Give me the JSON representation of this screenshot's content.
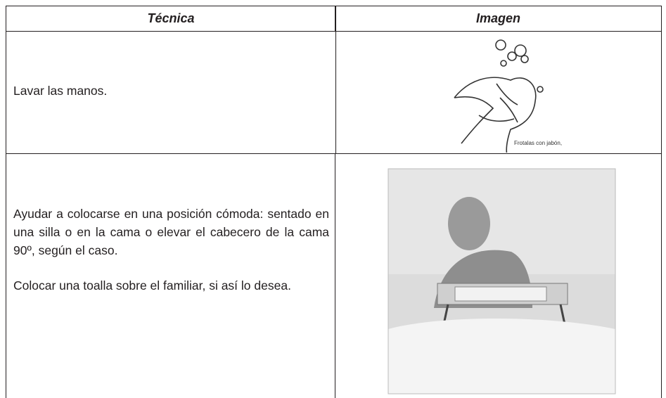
{
  "table": {
    "headers": [
      "Técnica",
      "Imagen"
    ],
    "rows": [
      {
        "tecnica": [
          "Lavar las manos."
        ],
        "caption": "Frotalas con jabón,"
      },
      {
        "tecnica": [
          "Ayudar a colocarse en una posición cómoda: sentado en una silla o en la cama o elevar el cabecero de la cama 90º, según el caso.",
          "Colocar una toalla sobre el familiar, si así lo desea."
        ]
      }
    ]
  }
}
